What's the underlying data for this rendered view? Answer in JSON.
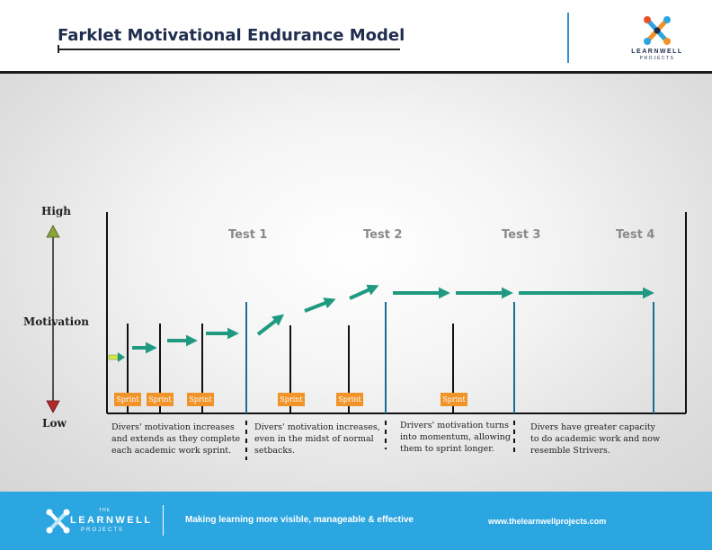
{
  "header": {
    "title": "Farklet Motivational Endurance Model",
    "logo": {
      "name": "LEARNWELL",
      "sub": "PROJECTS",
      "icon": "learnwell-x-icon"
    }
  },
  "axis": {
    "high_label": "High",
    "motivation_label": "Motivation",
    "low_label": "Low",
    "high_arrow_color": "#8aa33b",
    "low_arrow_color": "#b32a2a"
  },
  "tests": [
    "Test 1",
    "Test 2",
    "Test 3",
    "Test 4"
  ],
  "sprint_label": "Sprint",
  "colors": {
    "arrow": "#1f9a80",
    "test_line": "#1a6d96",
    "sprint_badge": "#f0942a",
    "footer": "#2ca6e0",
    "first_arrow": "#d8e54a"
  },
  "descriptions": [
    "Divers' motivation increases and extends as they complete each academic work sprint.",
    "Divers' motivation increases, even in the midst of normal setbacks.",
    "Drivers' motivation turns into momentum, allowing them to sprint longer.",
    "Divers have greater capacity to do academic work and now resemble Strivers."
  ],
  "footer": {
    "logo_top": "THE",
    "logo_name": "LEARNWELL",
    "logo_sub": "PROJECTS",
    "tagline": "Making learning more visible, manageable & effective",
    "url": "www.thelearnwellprojects.com"
  }
}
